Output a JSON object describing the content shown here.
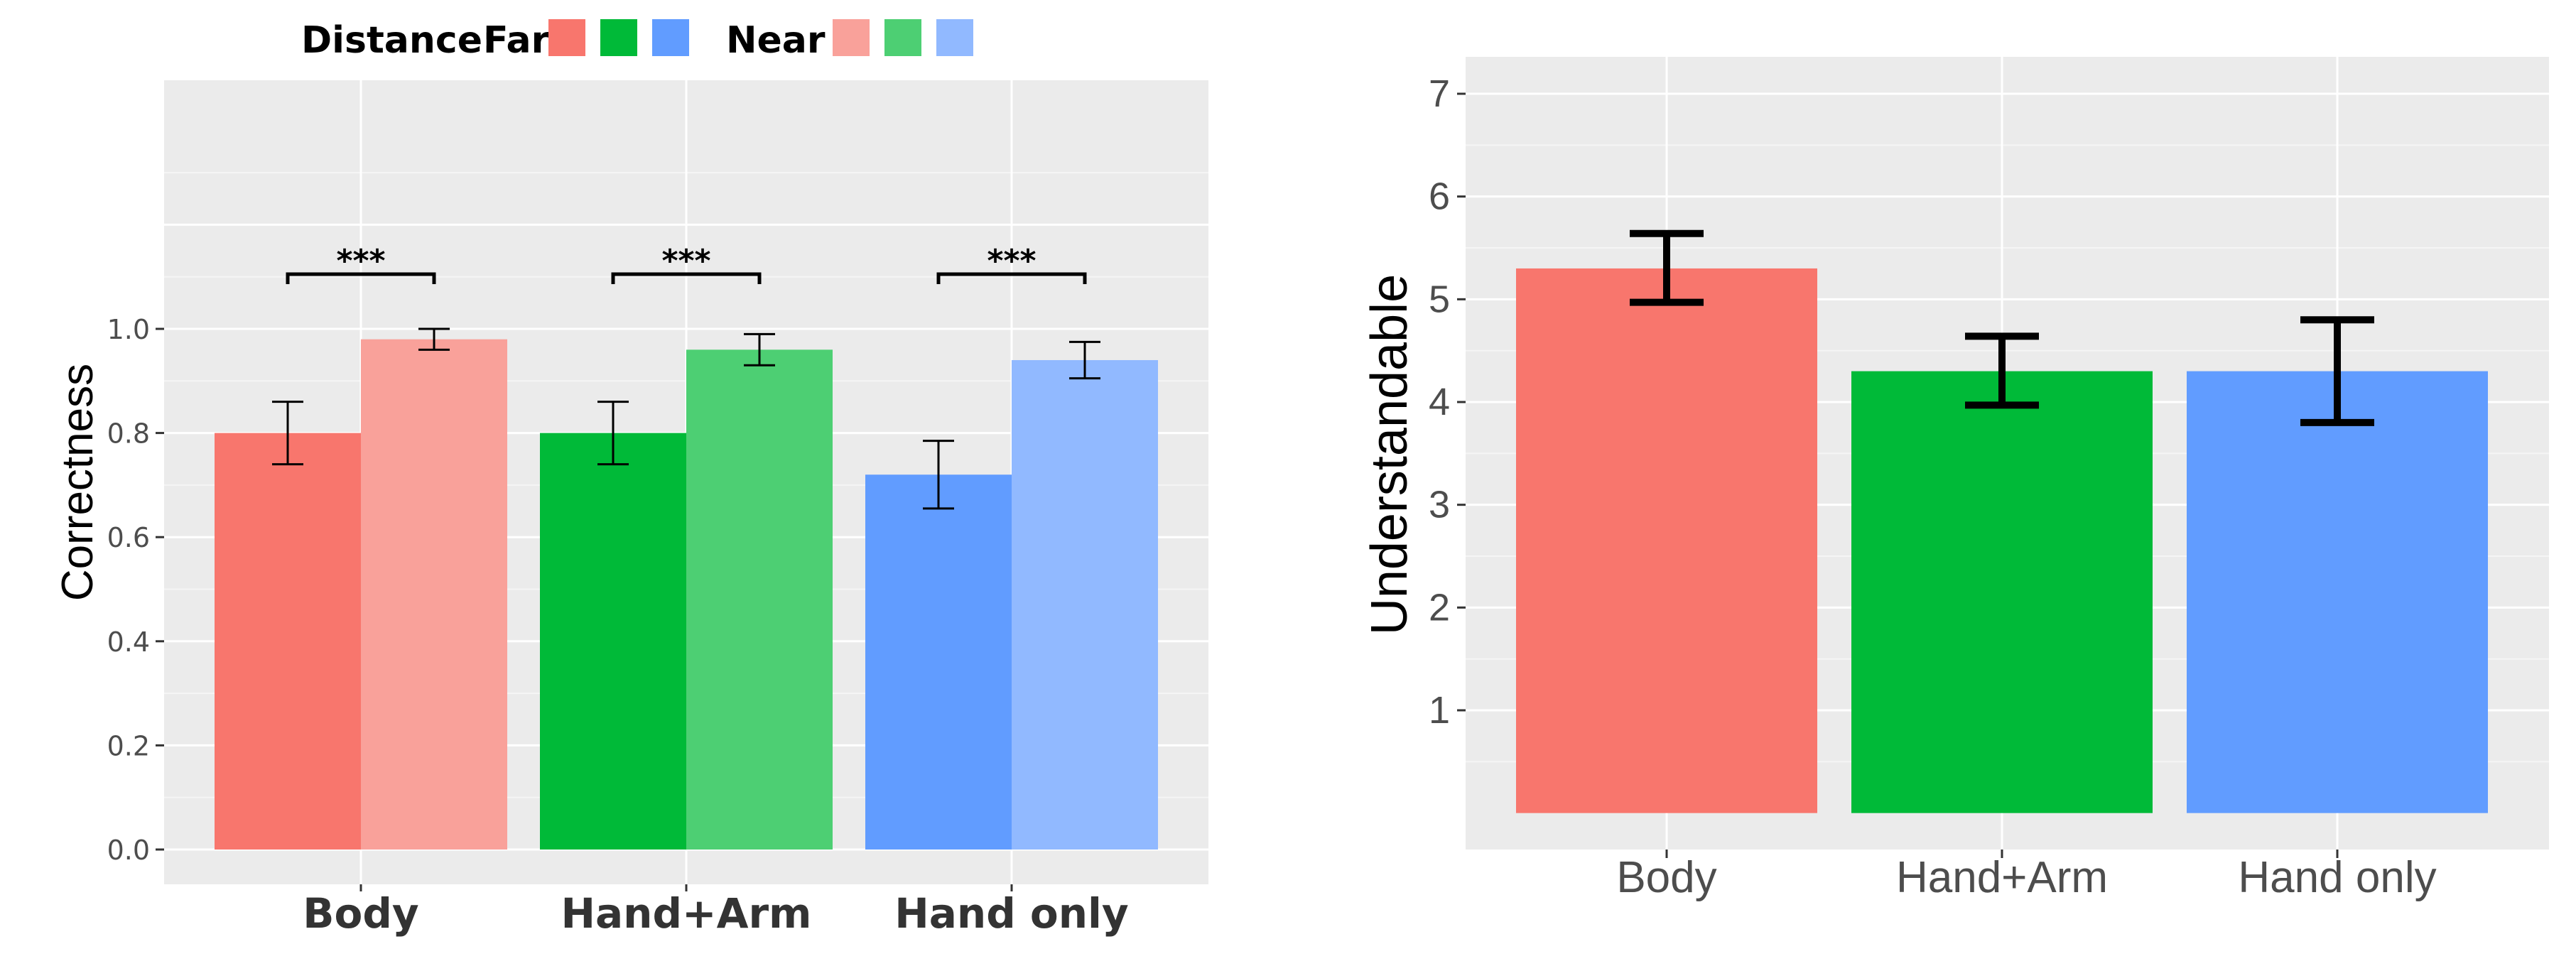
{
  "chart_data": [
    {
      "type": "bar",
      "categories": [
        "Body",
        "Hand+Arm",
        "Hand only"
      ],
      "ylabel": "Correctness",
      "xlabel": "",
      "ylim": [
        0,
        1.3
      ],
      "yticks": [
        "0.0",
        "0.2",
        "0.4",
        "0.6",
        "0.8",
        "1.0"
      ],
      "legend": {
        "title": "Distance:",
        "placement": "top",
        "entries": [
          {
            "label": "Far",
            "colors": [
              "#F8766D",
              "#00BA38",
              "#619CFF"
            ]
          },
          {
            "label": "Near",
            "colors": [
              "#F9A19A",
              "#4DCF73",
              "#91B9FF"
            ]
          }
        ]
      },
      "series": [
        {
          "name": "Far",
          "values": [
            0.8,
            0.8,
            0.72
          ],
          "err_low": [
            0.74,
            0.74,
            0.655
          ],
          "err_high": [
            0.86,
            0.86,
            0.785
          ]
        },
        {
          "name": "Near",
          "values": [
            0.98,
            0.96,
            0.94
          ],
          "err_low": [
            0.96,
            0.93,
            0.905
          ],
          "err_high": [
            1.0,
            0.99,
            0.975
          ]
        }
      ],
      "colors": {
        "Far": [
          "#F8766D",
          "#00BA38",
          "#619CFF"
        ],
        "Near": [
          "#F9A19A",
          "#4DCF73",
          "#91B9FF"
        ]
      },
      "annotations": [
        "***",
        "***",
        "***"
      ],
      "grid": true
    },
    {
      "type": "bar",
      "categories": [
        "Body",
        "Hand+Arm",
        "Hand only"
      ],
      "values": [
        5.3,
        4.3,
        4.3
      ],
      "err_low": [
        4.97,
        3.97,
        3.8
      ],
      "err_high": [
        5.64,
        4.64,
        4.8
      ],
      "colors": [
        "#F8766D",
        "#00BA38",
        "#619CFF"
      ],
      "ylabel": "Understandable",
      "xlabel": "",
      "ylim": [
        -0.35,
        7.35
      ],
      "yticks": [
        "1",
        "2",
        "3",
        "4",
        "5",
        "6",
        "7"
      ],
      "grid": true
    }
  ]
}
